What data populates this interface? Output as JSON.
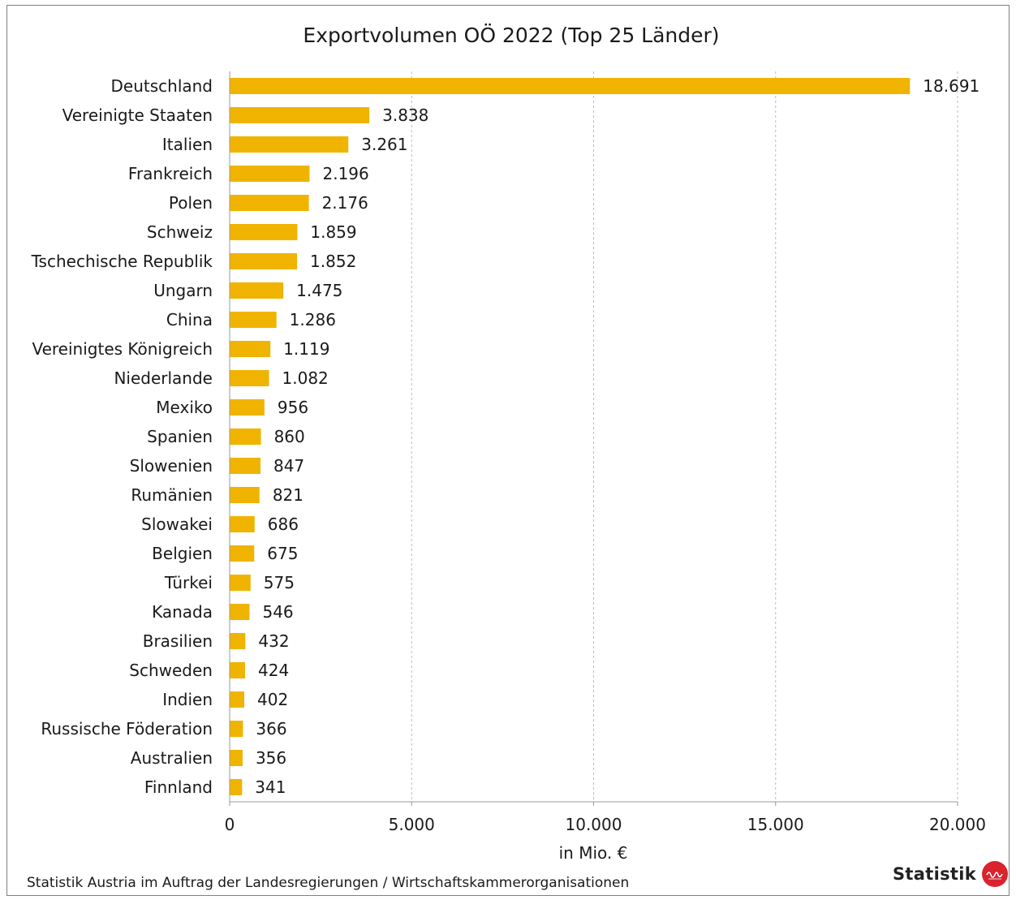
{
  "chart_data": {
    "type": "bar",
    "orientation": "horizontal",
    "title": "Exportvolumen OÖ 2022 (Top 25 Länder)",
    "xlabel": "in Mio. €",
    "ylabel": "",
    "xlim": [
      0,
      20000
    ],
    "xticks": [
      0,
      5000,
      10000,
      15000,
      20000
    ],
    "xtick_labels": [
      "0",
      "5.000",
      "10.000",
      "15.000",
      "20.000"
    ],
    "grid": "vertical dashed",
    "bar_color": "#F0B400",
    "categories": [
      "Deutschland",
      "Vereinigte Staaten",
      "Italien",
      "Frankreich",
      "Polen",
      "Schweiz",
      "Tschechische Republik",
      "Ungarn",
      "China",
      "Vereinigtes Königreich",
      "Niederlande",
      "Mexiko",
      "Spanien",
      "Slowenien",
      "Rumänien",
      "Slowakei",
      "Belgien",
      "Türkei",
      "Kanada",
      "Brasilien",
      "Schweden",
      "Indien",
      "Russische Föderation",
      "Australien",
      "Finnland"
    ],
    "values": [
      18691,
      3838,
      3261,
      2196,
      2176,
      1859,
      1852,
      1475,
      1286,
      1119,
      1082,
      956,
      860,
      847,
      821,
      686,
      675,
      575,
      546,
      432,
      424,
      402,
      366,
      356,
      341
    ],
    "value_labels": [
      "18.691",
      "3.838",
      "3.261",
      "2.196",
      "2.176",
      "1.859",
      "1.852",
      "1.475",
      "1.286",
      "1.119",
      "1.082",
      "956",
      "860",
      "847",
      "821",
      "686",
      "675",
      "575",
      "546",
      "432",
      "424",
      "402",
      "366",
      "356",
      "341"
    ]
  },
  "footer": {
    "source": "Statistik Austria im Auftrag der Landesregierungen / Wirtschaftskammerorganisationen",
    "logo_text": "Statistik",
    "logo_badge_icon": "oberoesterreich-badge-icon",
    "logo_badge_color": "#D9232D"
  }
}
